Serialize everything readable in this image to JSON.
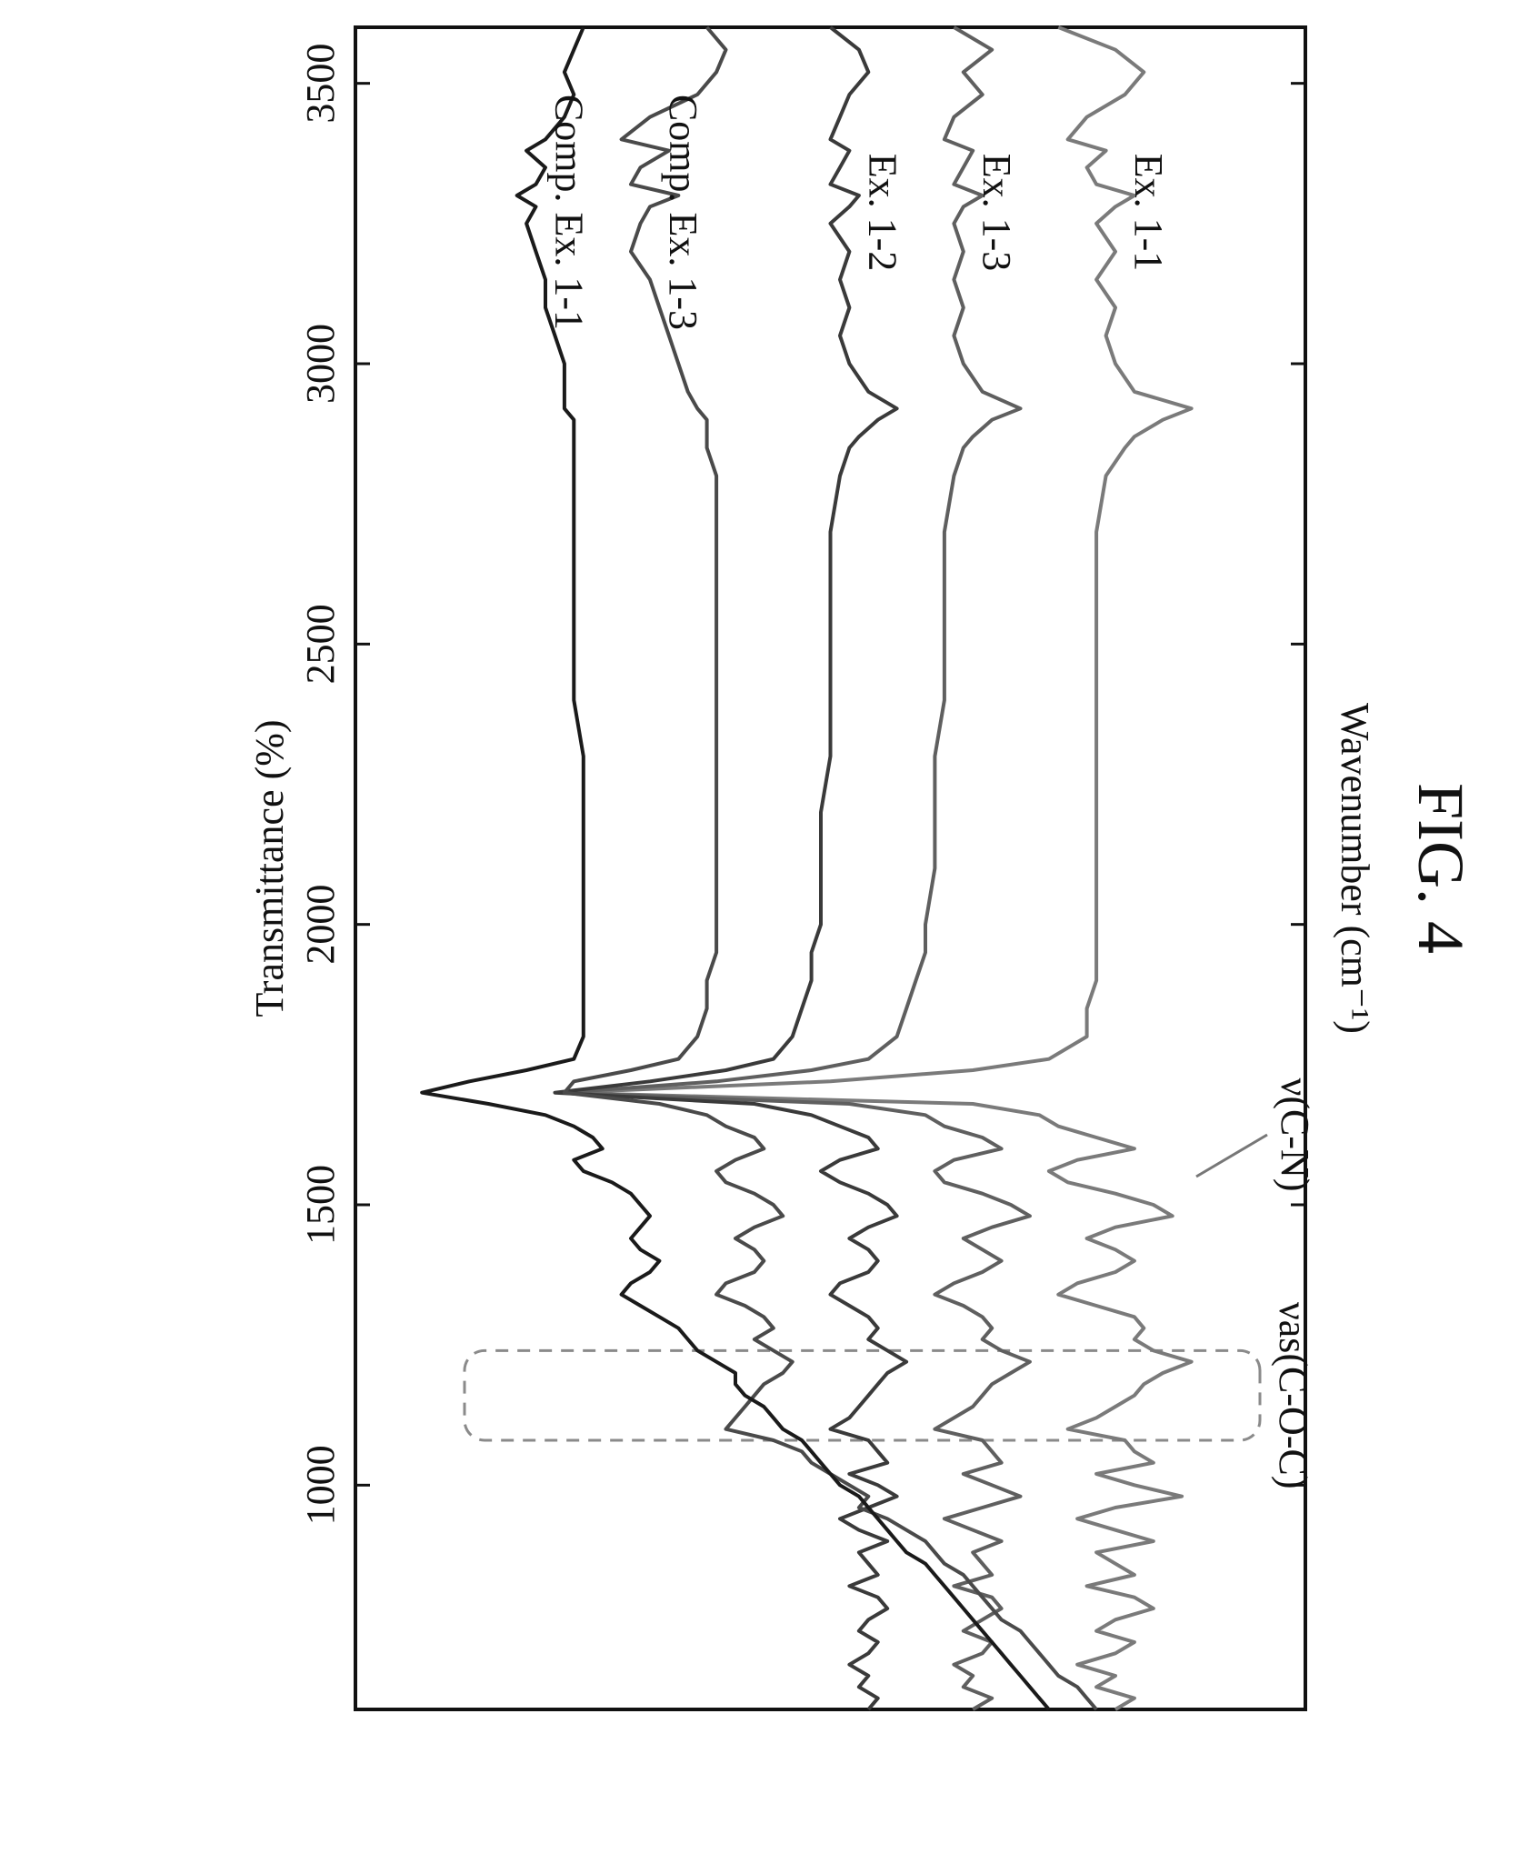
{
  "figure_label": "FIG. 4",
  "chart_data": {
    "type": "line",
    "title": "",
    "xlabel": "Wavenumber (cm⁻¹)",
    "ylabel": "Transmittance (%)",
    "xlim": [
      3600,
      600
    ],
    "x_reversed": true,
    "y_ticks_shown": false,
    "xticks": [
      3500,
      3000,
      2500,
      2000,
      1500,
      1000
    ],
    "xtick_labels": [
      "3500",
      "3000",
      "2500",
      "2000",
      "1500",
      "1000"
    ],
    "grid": false,
    "legend": "none",
    "series": [
      {
        "name": "Ex. 1-1",
        "color": "#7a7a7a",
        "x": [
          3600,
          3560,
          3520,
          3480,
          3440,
          3400,
          3380,
          3350,
          3320,
          3300,
          3280,
          3250,
          3200,
          3150,
          3100,
          3050,
          3000,
          2950,
          2920,
          2900,
          2870,
          2850,
          2800,
          2700,
          2600,
          2500,
          2400,
          2300,
          2200,
          2100,
          2000,
          1950,
          1900,
          1850,
          1800,
          1760,
          1740,
          1720,
          1700,
          1680,
          1660,
          1640,
          1620,
          1600,
          1580,
          1560,
          1540,
          1520,
          1500,
          1480,
          1460,
          1440,
          1420,
          1400,
          1380,
          1360,
          1340,
          1320,
          1300,
          1280,
          1260,
          1240,
          1220,
          1200,
          1180,
          1160,
          1140,
          1120,
          1100,
          1080,
          1060,
          1040,
          1020,
          1000,
          980,
          960,
          940,
          920,
          900,
          880,
          860,
          840,
          820,
          800,
          780,
          760,
          740,
          720,
          700,
          680,
          660,
          640,
          620,
          600
        ],
        "y": [
          54,
          60,
          63,
          61,
          57,
          55,
          59,
          57,
          58,
          62,
          60,
          58,
          60,
          58,
          60,
          59,
          60,
          62,
          68,
          65,
          62,
          61,
          59,
          58,
          58,
          58,
          58,
          58,
          58,
          58,
          58,
          58,
          58,
          57,
          57,
          53,
          45,
          30,
          2,
          45,
          52,
          54,
          58,
          62,
          56,
          53,
          55,
          60,
          64,
          66,
          60,
          57,
          60,
          62,
          60,
          56,
          54,
          58,
          62,
          63,
          62,
          64,
          68,
          65,
          63,
          62,
          60,
          58,
          55,
          61,
          62,
          64,
          58,
          62,
          67,
          60,
          56,
          60,
          64,
          58,
          60,
          62,
          57,
          62,
          64,
          60,
          58,
          62,
          60,
          56,
          60,
          58,
          62,
          60
        ]
      },
      {
        "name": "Ex. 1-3",
        "color": "#5f5f5f",
        "x": [
          3600,
          3560,
          3520,
          3480,
          3440,
          3400,
          3380,
          3350,
          3320,
          3300,
          3280,
          3250,
          3200,
          3150,
          3100,
          3050,
          3000,
          2950,
          2920,
          2900,
          2870,
          2850,
          2800,
          2700,
          2600,
          2500,
          2400,
          2300,
          2200,
          2100,
          2000,
          1950,
          1900,
          1850,
          1800,
          1760,
          1740,
          1720,
          1700,
          1680,
          1660,
          1640,
          1620,
          1600,
          1580,
          1560,
          1540,
          1520,
          1500,
          1480,
          1460,
          1440,
          1420,
          1400,
          1380,
          1360,
          1340,
          1320,
          1300,
          1280,
          1260,
          1240,
          1220,
          1200,
          1180,
          1160,
          1140,
          1120,
          1100,
          1080,
          1060,
          1040,
          1020,
          1000,
          980,
          960,
          940,
          920,
          900,
          880,
          860,
          840,
          820,
          800,
          780,
          760,
          740,
          720,
          700,
          680,
          660,
          640,
          620,
          600
        ],
        "y": [
          43,
          47,
          44,
          46,
          43,
          42,
          45,
          44,
          43,
          46,
          44,
          43,
          44,
          43,
          44,
          43,
          44,
          46,
          50,
          47,
          45,
          44,
          43,
          42,
          42,
          42,
          42,
          41,
          41,
          41,
          40,
          40,
          39,
          38,
          37,
          34,
          28,
          18,
          2,
          32,
          40,
          42,
          46,
          48,
          43,
          41,
          42,
          46,
          49,
          51,
          47,
          44,
          46,
          48,
          46,
          43,
          41,
          44,
          46,
          47,
          46,
          48,
          51,
          49,
          47,
          46,
          45,
          43,
          41,
          46,
          47,
          48,
          44,
          47,
          50,
          46,
          42,
          45,
          48,
          45,
          46,
          47,
          43,
          47,
          48,
          46,
          44,
          47,
          46,
          43,
          45,
          44,
          47,
          45
        ]
      },
      {
        "name": "Ex. 1-2",
        "color": "#3a3a3a",
        "x": [
          3600,
          3560,
          3520,
          3480,
          3440,
          3400,
          3380,
          3350,
          3320,
          3300,
          3280,
          3250,
          3200,
          3150,
          3100,
          3050,
          3000,
          2950,
          2920,
          2900,
          2870,
          2850,
          2800,
          2700,
          2600,
          2500,
          2400,
          2300,
          2200,
          2100,
          2000,
          1950,
          1900,
          1850,
          1800,
          1760,
          1740,
          1720,
          1700,
          1680,
          1660,
          1640,
          1620,
          1600,
          1580,
          1560,
          1540,
          1520,
          1500,
          1480,
          1460,
          1440,
          1420,
          1400,
          1380,
          1360,
          1340,
          1320,
          1300,
          1280,
          1260,
          1240,
          1220,
          1200,
          1180,
          1160,
          1140,
          1120,
          1100,
          1080,
          1060,
          1040,
          1020,
          1000,
          980,
          960,
          940,
          920,
          900,
          880,
          860,
          840,
          820,
          800,
          780,
          760,
          740,
          720,
          700,
          680,
          660,
          640,
          620,
          600
        ],
        "y": [
          30,
          33,
          34,
          32,
          31,
          30,
          32,
          31,
          30,
          33,
          32,
          30,
          32,
          31,
          32,
          31,
          32,
          34,
          37,
          35,
          33,
          32,
          31,
          30,
          30,
          30,
          30,
          30,
          29,
          29,
          29,
          28,
          28,
          27,
          26,
          24,
          19,
          11,
          1,
          22,
          28,
          31,
          34,
          35,
          31,
          29,
          31,
          34,
          36,
          37,
          34,
          32,
          34,
          35,
          34,
          31,
          30,
          32,
          34,
          35,
          34,
          36,
          38,
          36,
          35,
          34,
          33,
          32,
          30,
          34,
          35,
          36,
          32,
          35,
          37,
          34,
          31,
          33,
          36,
          33,
          34,
          35,
          32,
          35,
          36,
          34,
          33,
          35,
          34,
          32,
          34,
          33,
          35,
          34
        ]
      },
      {
        "name": "Comp. Ex. 1-3",
        "color": "#4a4a4a",
        "x": [
          3600,
          3560,
          3520,
          3480,
          3440,
          3400,
          3380,
          3350,
          3320,
          3300,
          3280,
          3250,
          3200,
          3150,
          3100,
          3050,
          3000,
          2950,
          2920,
          2900,
          2870,
          2850,
          2800,
          2700,
          2600,
          2500,
          2400,
          2300,
          2200,
          2100,
          2000,
          1950,
          1900,
          1850,
          1800,
          1760,
          1740,
          1720,
          1700,
          1680,
          1660,
          1640,
          1620,
          1600,
          1580,
          1560,
          1540,
          1520,
          1500,
          1480,
          1460,
          1440,
          1420,
          1400,
          1380,
          1360,
          1340,
          1320,
          1300,
          1280,
          1260,
          1240,
          1220,
          1200,
          1180,
          1160,
          1140,
          1120,
          1100,
          1080,
          1060,
          1040,
          1020,
          1000,
          980,
          960,
          940,
          920,
          900,
          880,
          860,
          840,
          820,
          800,
          780,
          760,
          740,
          720,
          700,
          680,
          660,
          640,
          620,
          600
        ],
        "y": [
          17,
          19,
          18,
          16,
          11,
          8,
          13,
          10,
          9,
          14,
          11,
          10,
          9,
          11,
          12,
          13,
          14,
          15,
          16,
          17,
          17,
          17,
          18,
          18,
          18,
          18,
          18,
          18,
          18,
          18,
          18,
          18,
          17,
          17,
          16,
          14,
          9,
          3,
          2,
          12,
          17,
          19,
          22,
          23,
          20,
          18,
          19,
          22,
          24,
          25,
          22,
          20,
          22,
          23,
          22,
          19,
          18,
          21,
          23,
          24,
          22,
          24,
          26,
          25,
          23,
          22,
          21,
          20,
          19,
          24,
          27,
          28,
          30,
          32,
          34,
          33,
          36,
          38,
          40,
          41,
          42,
          44,
          45,
          46,
          47,
          48,
          50,
          51,
          52,
          53,
          54,
          56,
          57,
          58
        ]
      },
      {
        "name": "Comp. Ex. 1-1",
        "color": "#1a1a1a",
        "x": [
          3600,
          3560,
          3520,
          3480,
          3440,
          3400,
          3380,
          3350,
          3320,
          3300,
          3280,
          3250,
          3200,
          3150,
          3100,
          3050,
          3000,
          2950,
          2920,
          2900,
          2870,
          2850,
          2800,
          2700,
          2600,
          2500,
          2400,
          2300,
          2200,
          2100,
          2000,
          1950,
          1900,
          1850,
          1800,
          1760,
          1740,
          1720,
          1700,
          1680,
          1660,
          1640,
          1620,
          1600,
          1580,
          1560,
          1540,
          1520,
          1500,
          1480,
          1460,
          1440,
          1420,
          1400,
          1380,
          1360,
          1340,
          1320,
          1300,
          1280,
          1260,
          1240,
          1220,
          1200,
          1180,
          1160,
          1140,
          1120,
          1100,
          1080,
          1060,
          1040,
          1020,
          1000,
          980,
          960,
          940,
          920,
          900,
          880,
          860,
          840,
          820,
          800,
          780,
          760,
          740,
          720,
          700,
          680,
          660,
          640,
          620,
          600
        ],
        "y": [
          4,
          3,
          2,
          3,
          2,
          0,
          -2,
          0,
          -1,
          -3,
          -1,
          -2,
          -1,
          0,
          0,
          1,
          2,
          2,
          2,
          3,
          3,
          3,
          3,
          3,
          3,
          3,
          3,
          4,
          4,
          4,
          4,
          4,
          4,
          4,
          4,
          3,
          -2,
          -8,
          -13,
          -6,
          0,
          3,
          5,
          6,
          3,
          4,
          7,
          9,
          10,
          11,
          10,
          9,
          10,
          12,
          11,
          9,
          8,
          10,
          12,
          14,
          15,
          16,
          18,
          20,
          20,
          21,
          23,
          24,
          25,
          27,
          28,
          29,
          30,
          31,
          33,
          34,
          35,
          36,
          37,
          38,
          40,
          41,
          42,
          43,
          44,
          45,
          46,
          47,
          48,
          49,
          50,
          51,
          52,
          53
        ]
      }
    ],
    "annotations": [
      {
        "label": "νas(C-O-C)",
        "x": 1160
      },
      {
        "label": "ν(C-N)",
        "x": 1560
      }
    ],
    "highlight_range": [
      1240,
      1080
    ]
  }
}
